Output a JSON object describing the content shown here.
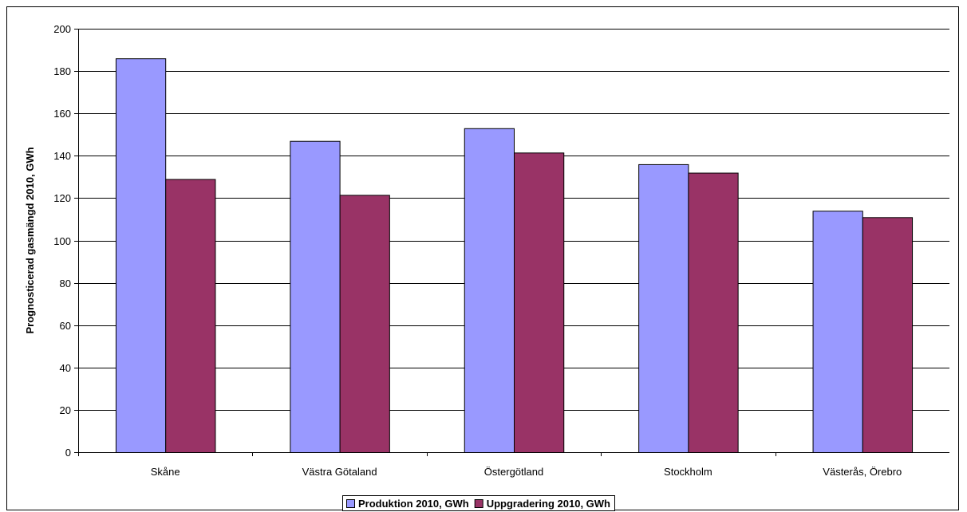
{
  "chart_data": {
    "type": "bar",
    "categories": [
      "Skåne",
      "Västra Götaland",
      "Östergötland",
      "Stockholm",
      "Västerås, Örebro"
    ],
    "series": [
      {
        "name": "Produktion 2010, GWh",
        "values": [
          186,
          147,
          153,
          136,
          114
        ],
        "color": "#9999ff"
      },
      {
        "name": "Uppgradering 2010, GWh",
        "values": [
          129,
          121.5,
          141.5,
          132,
          111
        ],
        "color": "#993366"
      }
    ],
    "ylabel": "Prognosticerad gasmängd 2010, GWh",
    "xlabel": "",
    "ylim": [
      0,
      200
    ],
    "yticks": [
      0,
      20,
      40,
      60,
      80,
      100,
      120,
      140,
      160,
      180,
      200
    ],
    "grid": true,
    "legend_position": "bottom"
  }
}
